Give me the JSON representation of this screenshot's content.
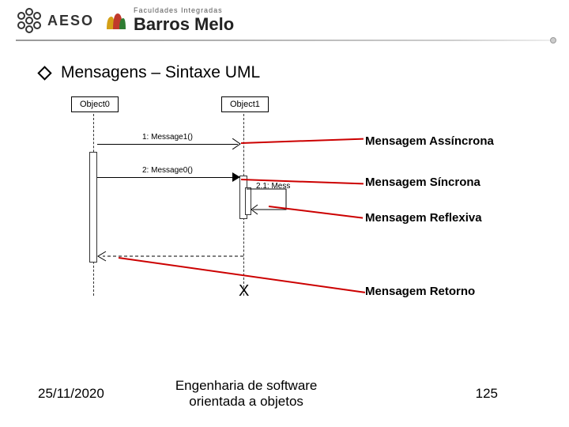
{
  "header": {
    "aeso_text": "AESO",
    "fac_int": "Faculdades Integradas",
    "barros": "Barros Melo"
  },
  "title": "Mensagens – Sintaxe UML",
  "diagram": {
    "object0": "Object0",
    "object1": "Object1",
    "msg1": "1: Message1()",
    "msg2": "2: Message0()",
    "msg21": "2.1: Mess",
    "x_symbol": "X",
    "annotations": {
      "async": "Mensagem Assíncrona",
      "sync": "Mensagem Síncrona",
      "reflex": "Mensagem Reflexiva",
      "return": "Mensagem Retorno"
    },
    "colors": {
      "red": "#cc0000",
      "box_border": "#000000",
      "bg": "#ffffff"
    }
  },
  "footer": {
    "date": "25/11/2020",
    "course": "Engenharia de software orientada a objetos",
    "page": "125"
  }
}
